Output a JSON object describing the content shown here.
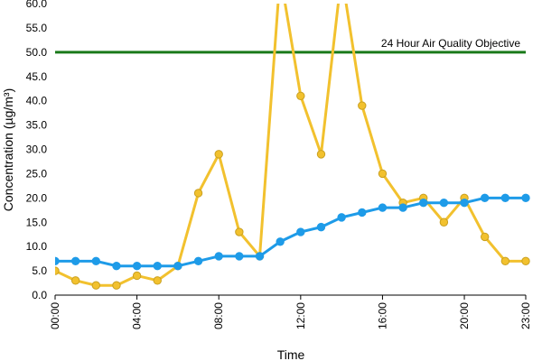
{
  "chart_data": {
    "type": "line",
    "title": "",
    "xlabel": "Time",
    "ylabel": "Concentration (µg/m³)",
    "ylim": [
      0,
      60
    ],
    "y_ticks": [
      "0.0",
      "5.0",
      "10.0",
      "15.0",
      "20.0",
      "25.0",
      "30.0",
      "35.0",
      "40.0",
      "45.0",
      "50.0",
      "55.0",
      "60.0"
    ],
    "x_ticks": [
      "00:00",
      "04:00",
      "08:00",
      "12:00",
      "16:00",
      "20:00",
      "23:00"
    ],
    "x_hours": [
      0,
      1,
      2,
      3,
      4,
      5,
      6,
      7,
      8,
      9,
      10,
      11,
      12,
      13,
      14,
      15,
      16,
      17,
      18,
      19,
      20,
      21,
      22,
      23
    ],
    "grid": false,
    "series": [
      {
        "color": "#1E9BE8",
        "values": [
          7,
          7,
          7,
          6,
          6,
          6,
          6,
          7,
          8,
          8,
          8,
          11,
          13,
          14,
          16,
          17,
          18,
          18,
          19,
          19,
          19,
          20,
          20,
          20
        ]
      },
      {
        "color": "#F2C12E",
        "values": [
          5,
          3,
          2,
          2,
          4,
          3,
          6,
          21,
          29,
          13,
          8,
          66,
          41,
          29,
          66,
          39,
          25,
          19,
          20,
          15,
          20,
          12,
          7,
          7
        ]
      }
    ],
    "reference_line": {
      "value": 50,
      "label": "24 Hour Air Quality Objective",
      "color": "#1A7A1A"
    }
  }
}
